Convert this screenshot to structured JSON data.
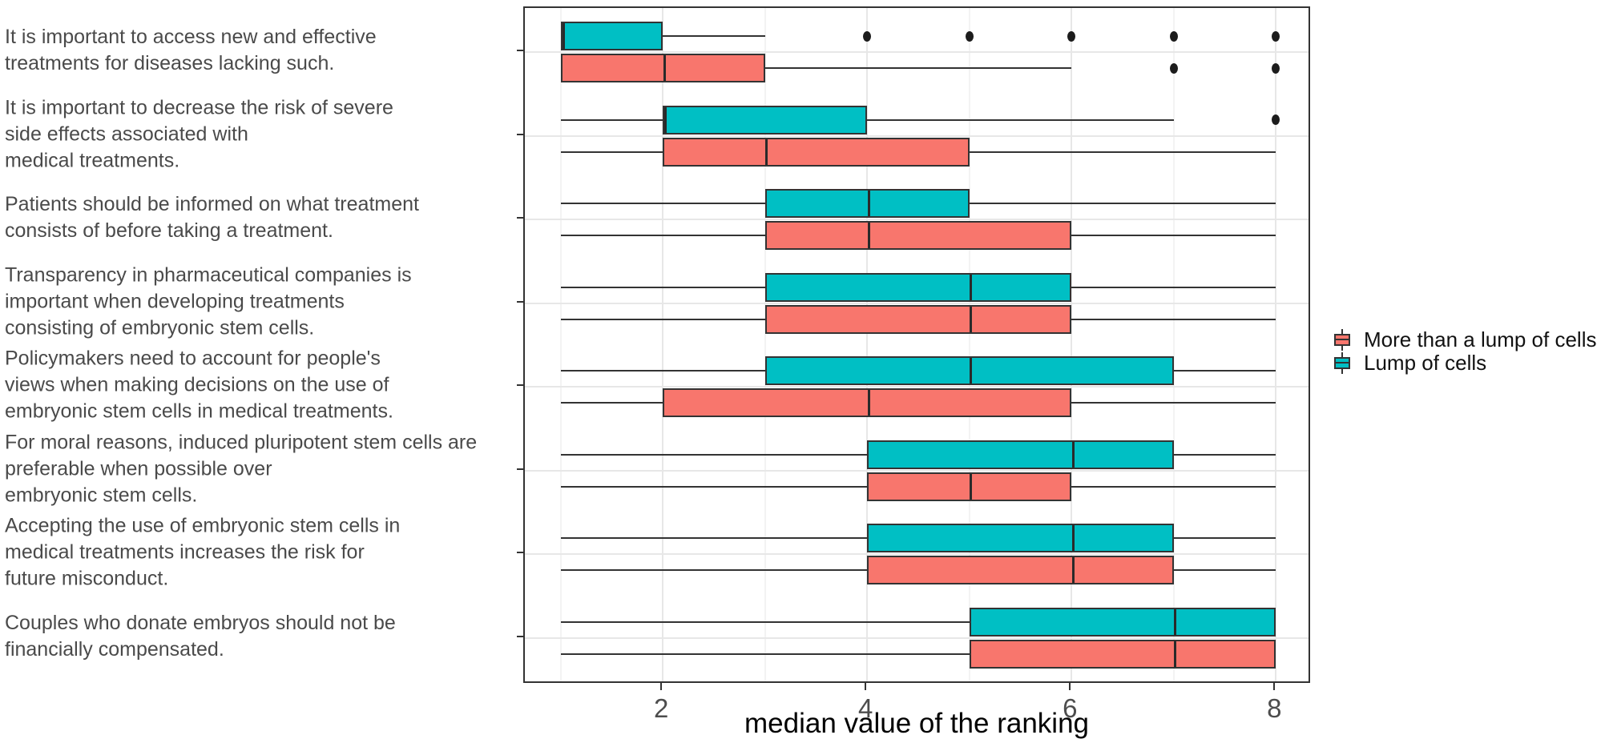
{
  "chart_data": {
    "type": "boxplot",
    "orientation": "horizontal",
    "title": "",
    "xlabel": "median value of the ranking",
    "x_range": [
      0.65,
      8.35
    ],
    "x_major_ticks": [
      2,
      4,
      6,
      8
    ],
    "x_minor_gridlines": [
      1,
      3,
      5,
      7
    ],
    "grid": "major-vertical, minor-vertical, major-horizontal-at-category-centers",
    "legend_position": "right",
    "legend": [
      {
        "label": "More than a lump of cells",
        "color": "#F8766D"
      },
      {
        "label": "Lump of cells",
        "color": "#00BFC4"
      }
    ],
    "style": {
      "box_border": "#333333",
      "whisker": "#333333",
      "outlier": "#1c1c1c",
      "grid_major": "#e7e7e7",
      "grid_minor": "#f3f3f3",
      "panel_border": "#333333",
      "axis_text": "#4d4d4d",
      "axis_title": "#000000",
      "background": "#ffffff"
    },
    "categories": [
      {
        "label_lines": [
          "It is important to access new and effective",
          "treatments for diseases lacking such."
        ],
        "boxes": [
          {
            "series": "Lump of cells",
            "color": "#00BFC4",
            "min": 1,
            "q1": 1,
            "median": 1,
            "q3": 2,
            "max": 3,
            "outliers": [
              4,
              5,
              6,
              7,
              8
            ]
          },
          {
            "series": "More than a lump of cells",
            "color": "#F8766D",
            "min": 1,
            "q1": 1,
            "median": 2,
            "q3": 3,
            "max": 6,
            "outliers": [
              7,
              8
            ]
          }
        ]
      },
      {
        "label_lines": [
          "It is important to decrease the risk of severe",
          "side effects associated with",
          "medical treatments."
        ],
        "boxes": [
          {
            "series": "Lump of cells",
            "color": "#00BFC4",
            "min": 1,
            "q1": 2,
            "median": 2,
            "q3": 4,
            "max": 7,
            "outliers": [
              8
            ]
          },
          {
            "series": "More than a lump of cells",
            "color": "#F8766D",
            "min": 1,
            "q1": 2,
            "median": 3,
            "q3": 5,
            "max": 8,
            "outliers": []
          }
        ]
      },
      {
        "label_lines": [
          "Patients should be informed on what treatment",
          "consists of before taking a treatment."
        ],
        "boxes": [
          {
            "series": "Lump of cells",
            "color": "#00BFC4",
            "min": 1,
            "q1": 3,
            "median": 4,
            "q3": 5,
            "max": 8,
            "outliers": []
          },
          {
            "series": "More than a lump of cells",
            "color": "#F8766D",
            "min": 1,
            "q1": 3,
            "median": 4,
            "q3": 6,
            "max": 8,
            "outliers": []
          }
        ]
      },
      {
        "label_lines": [
          "Transparency in pharmaceutical companies is",
          "important when developing treatments",
          "consisting of embryonic stem cells."
        ],
        "boxes": [
          {
            "series": "Lump of cells",
            "color": "#00BFC4",
            "min": 1,
            "q1": 3,
            "median": 5,
            "q3": 6,
            "max": 8,
            "outliers": []
          },
          {
            "series": "More than a lump of cells",
            "color": "#F8766D",
            "min": 1,
            "q1": 3,
            "median": 5,
            "q3": 6,
            "max": 8,
            "outliers": []
          }
        ]
      },
      {
        "label_lines": [
          "Policymakers need to account for people's",
          "views when making decisions on the use of",
          "embryonic stem cells in medical treatments."
        ],
        "boxes": [
          {
            "series": "Lump of cells",
            "color": "#00BFC4",
            "min": 1,
            "q1": 3,
            "median": 5,
            "q3": 7,
            "max": 8,
            "outliers": []
          },
          {
            "series": "More than a lump of cells",
            "color": "#F8766D",
            "min": 1,
            "q1": 2,
            "median": 4,
            "q3": 6,
            "max": 8,
            "outliers": []
          }
        ]
      },
      {
        "label_lines": [
          "For moral reasons, induced pluripotent stem cells are",
          "preferable when possible over",
          "embryonic stem cells."
        ],
        "boxes": [
          {
            "series": "Lump of cells",
            "color": "#00BFC4",
            "min": 1,
            "q1": 4,
            "median": 6,
            "q3": 7,
            "max": 8,
            "outliers": []
          },
          {
            "series": "More than a lump of cells",
            "color": "#F8766D",
            "min": 1,
            "q1": 4,
            "median": 5,
            "q3": 6,
            "max": 8,
            "outliers": []
          }
        ]
      },
      {
        "label_lines": [
          "Accepting the use of embryonic stem cells in",
          "medical treatments increases the risk for",
          "future misconduct."
        ],
        "boxes": [
          {
            "series": "Lump of cells",
            "color": "#00BFC4",
            "min": 1,
            "q1": 4,
            "median": 6,
            "q3": 7,
            "max": 8,
            "outliers": []
          },
          {
            "series": "More than a lump of cells",
            "color": "#F8766D",
            "min": 1,
            "q1": 4,
            "median": 6,
            "q3": 7,
            "max": 8,
            "outliers": []
          }
        ]
      },
      {
        "label_lines": [
          "Couples who donate embryos should not be",
          "financially compensated."
        ],
        "boxes": [
          {
            "series": "Lump of cells",
            "color": "#00BFC4",
            "min": 1,
            "q1": 5,
            "median": 7,
            "q3": 8,
            "max": 8,
            "outliers": []
          },
          {
            "series": "More than a lump of cells",
            "color": "#F8766D",
            "min": 1,
            "q1": 5,
            "median": 7,
            "q3": 8,
            "max": 8,
            "outliers": []
          }
        ]
      }
    ]
  }
}
